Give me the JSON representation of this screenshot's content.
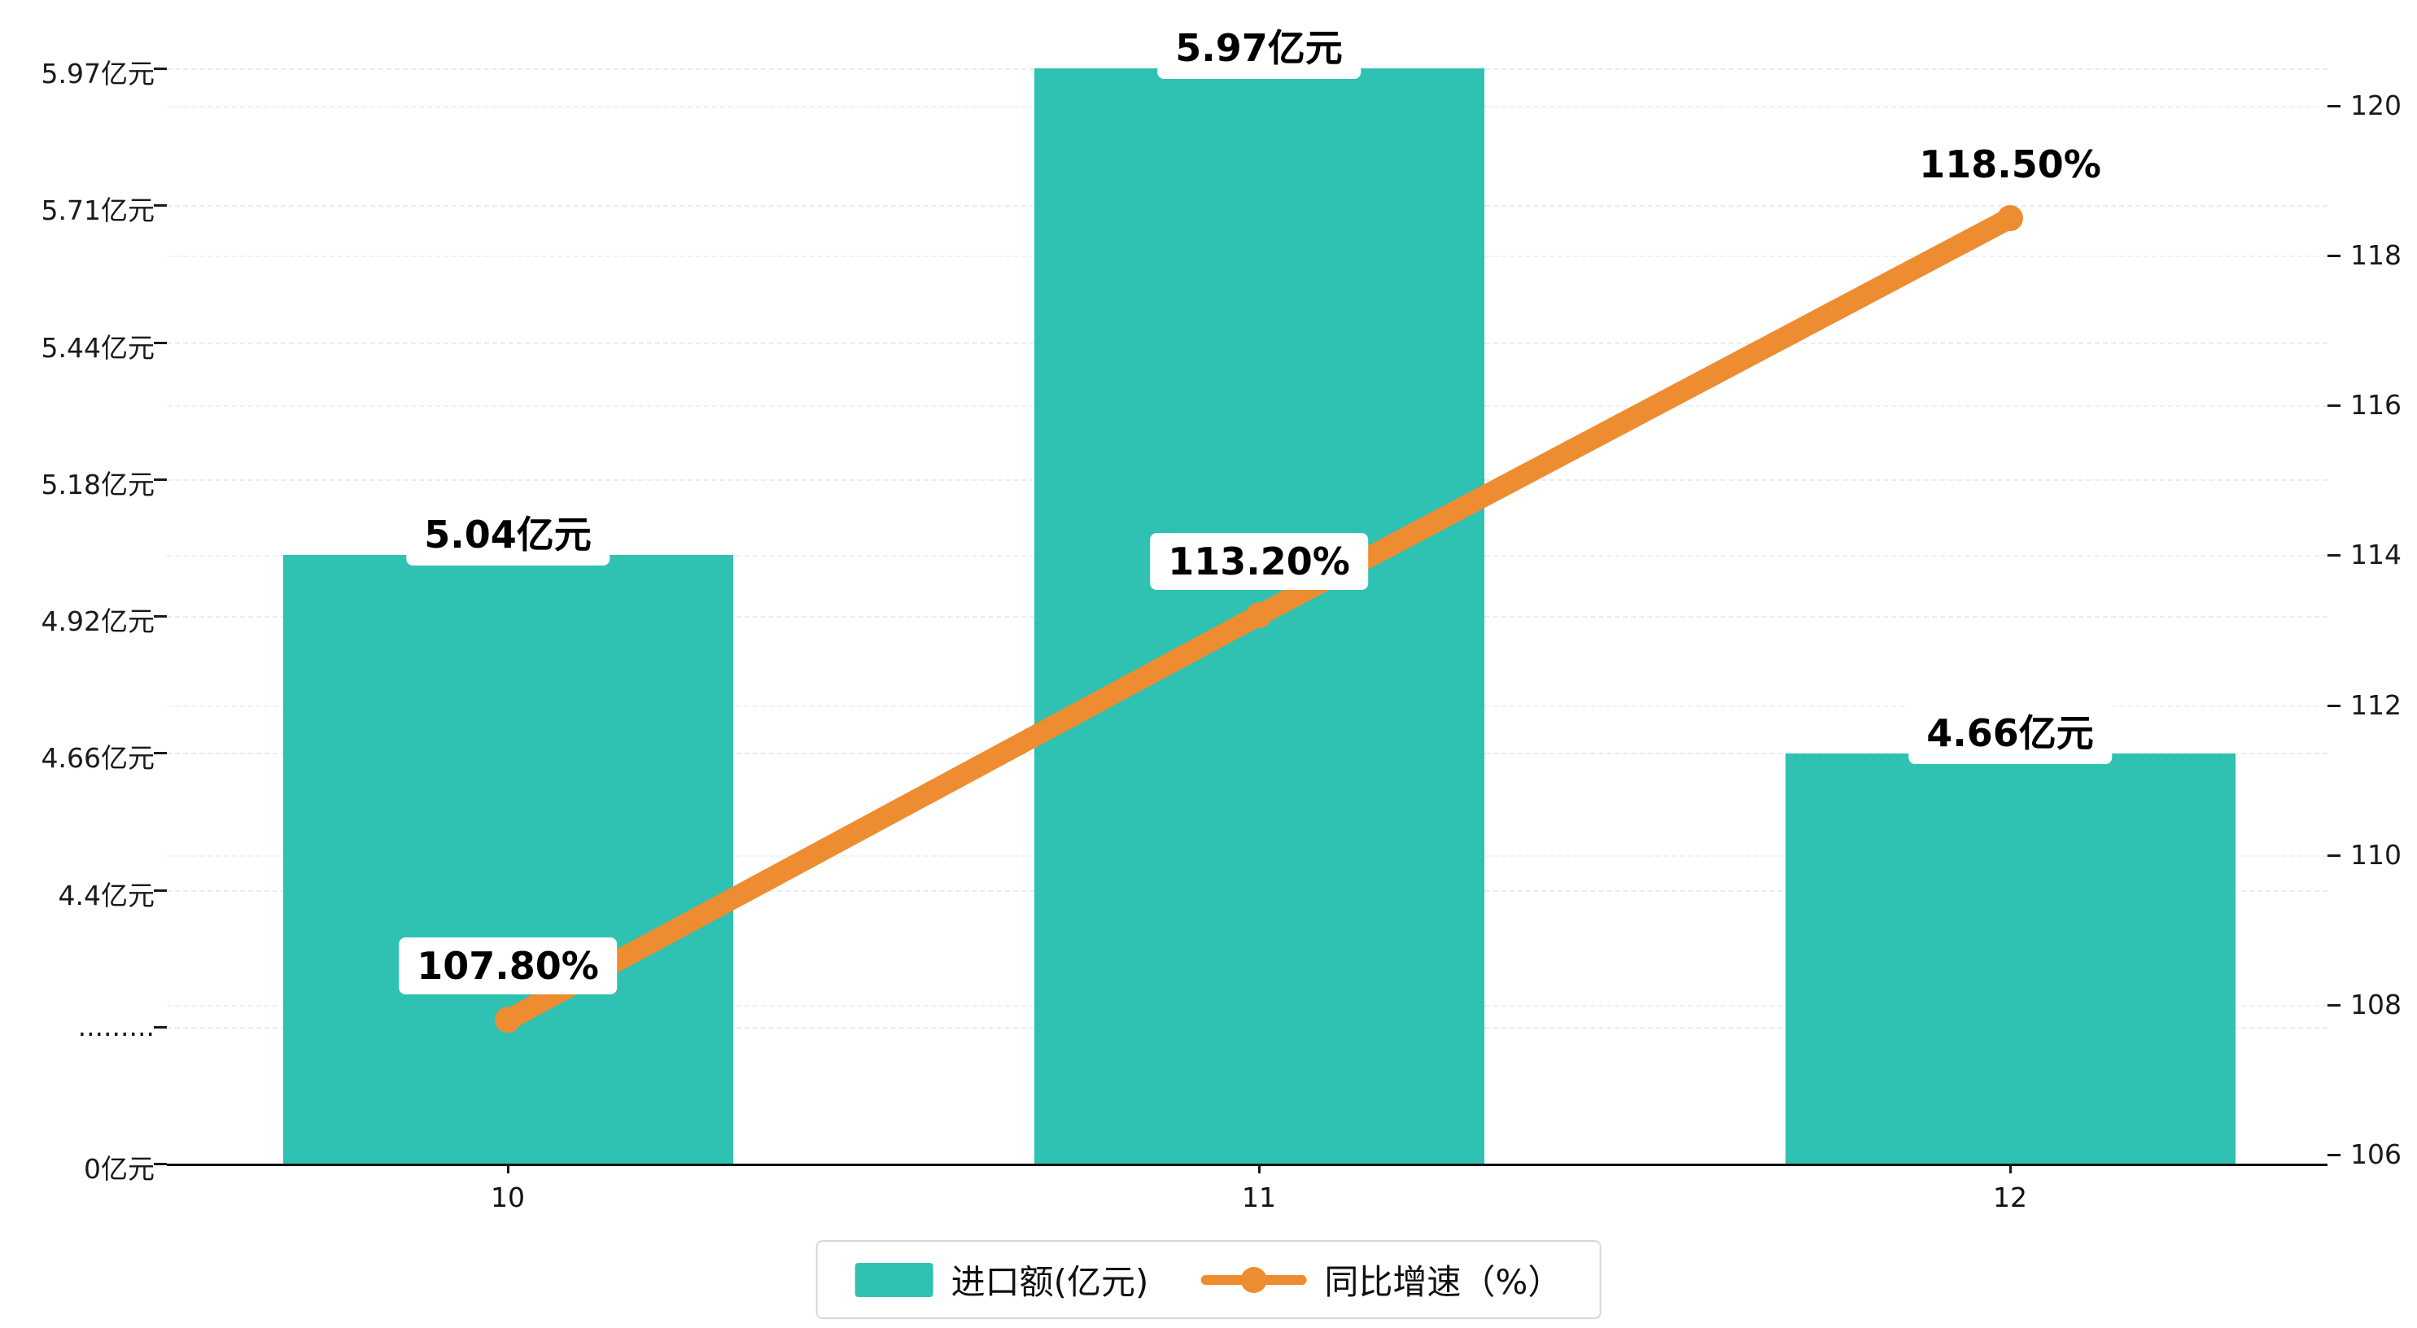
{
  "chart_data": {
    "type": "bar",
    "subtype": "bar+line combo",
    "categories": [
      "10",
      "11",
      "12"
    ],
    "series": [
      {
        "name": "进口额(亿元)",
        "type": "bar",
        "values": [
          5.04,
          5.97,
          4.66
        ],
        "labels": [
          "5.04亿元",
          "5.97亿元",
          "4.66亿元"
        ],
        "color": "#2fc1b2"
      },
      {
        "name": "同比增速（%）",
        "type": "line",
        "values": [
          107.8,
          113.2,
          118.5
        ],
        "labels": [
          "107.80%",
          "113.20%",
          "118.50%"
        ],
        "color": "#ee8c31"
      }
    ],
    "left_axis": {
      "tick_labels": [
        "5.97亿元",
        "5.71亿元",
        "5.44亿元",
        "5.18亿元",
        "4.92亿元",
        "4.66亿元",
        "4.4亿元",
        ".........",
        "0亿元"
      ],
      "value_top": 5.97,
      "value_bottom": 4.4,
      "broken_axis": true
    },
    "right_axis": {
      "ticks": [
        120,
        118,
        116,
        114,
        112,
        110,
        108,
        106
      ],
      "min": 106,
      "max": 120
    },
    "legend": [
      {
        "label": "进口额(亿元)",
        "marker": "bar-swatch"
      },
      {
        "label": "同比增速（%）",
        "marker": "line-dot"
      }
    ],
    "grid": "dashed horizontal",
    "legend_position": "bottom-center"
  },
  "colors": {
    "bar": "#2fc1b2",
    "line": "#ee8c31",
    "label_bg": "#ffffff",
    "grid": "#ebebeb",
    "axis": "#111111",
    "legend_border": "#d8d8d8"
  }
}
